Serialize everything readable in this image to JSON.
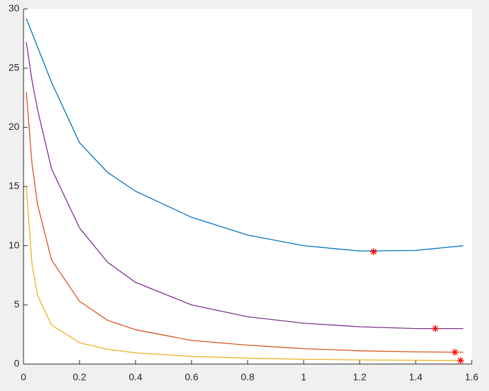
{
  "chart_data": {
    "type": "line",
    "x": [
      0.01,
      0.03,
      0.05,
      0.1,
      0.2,
      0.3,
      0.4,
      0.6,
      0.8,
      1.0,
      1.2,
      1.4,
      1.57
    ],
    "series": [
      {
        "color": "#0072bd",
        "values": [
          29.2,
          28,
          26.8,
          23.8,
          18.7,
          16.2,
          14.6,
          12.4,
          10.9,
          10.0,
          9.55,
          9.6,
          10.0
        ]
      },
      {
        "color": "#d95319",
        "values": [
          23,
          17,
          13.5,
          8.8,
          5.3,
          3.7,
          2.9,
          2.0,
          1.6,
          1.3,
          1.12,
          1.03,
          1.0
        ]
      },
      {
        "color": "#edb120",
        "values": [
          15,
          8.5,
          5.8,
          3.3,
          1.8,
          1.25,
          0.95,
          0.65,
          0.5,
          0.4,
          0.35,
          0.32,
          0.3
        ]
      },
      {
        "color": "#7e2f8e",
        "values": [
          27.2,
          24,
          21.5,
          16.5,
          11.5,
          8.6,
          6.9,
          5.0,
          4.0,
          3.45,
          3.15,
          3.0,
          3.0
        ]
      }
    ],
    "markers": {
      "type": "scatter",
      "color": "#ff0000",
      "x": [
        1.25,
        1.47,
        1.54,
        1.56
      ],
      "values": [
        9.5,
        3.0,
        1.0,
        0.3
      ]
    },
    "xlim": [
      0,
      1.6
    ],
    "xticks": [
      0,
      0.2,
      0.4,
      0.6,
      0.8,
      1,
      1.2,
      1.4,
      1.6
    ],
    "ylim": [
      0,
      30
    ],
    "yticks": [
      0,
      5,
      10,
      15,
      20,
      25,
      30
    ],
    "grid": false
  }
}
